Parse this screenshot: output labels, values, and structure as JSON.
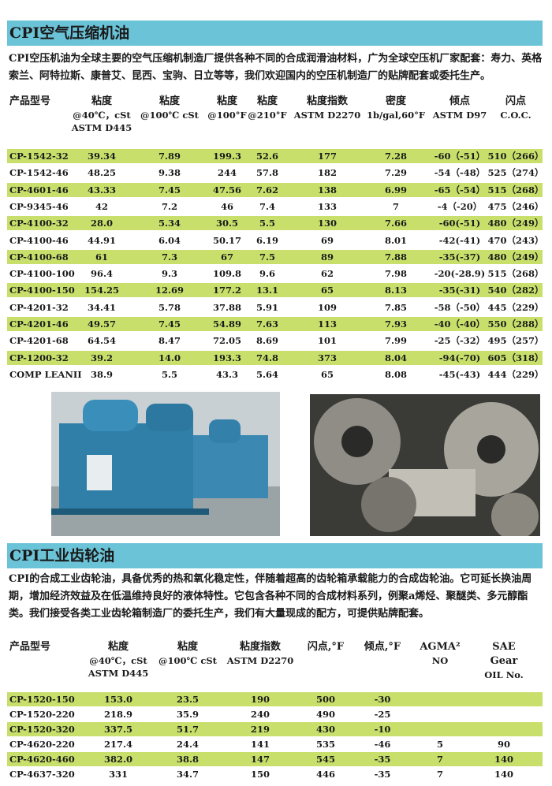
{
  "section1": {
    "title": "CPI空气压缩机油",
    "intro": " CPI空压机油为全球主要的空气压缩机制造厂提供各种不同的合成润滑油材料，广为全球空压机厂家配套：寿力、英格索兰、阿特拉斯、康普艾、昆西、宝驹、日立等等，我们欢迎国内的空压机制造厂的贴牌配套或委托生产。",
    "headers": [
      [
        "产品型号"
      ],
      [
        "粘度",
        "@40℃，cSt",
        "ASTM D445"
      ],
      [
        "粘度",
        "@100℃ cSt"
      ],
      [
        "粘度",
        "@100°F"
      ],
      [
        "粘度",
        "@210°F"
      ],
      [
        "粘度指数",
        "ASTM D2270"
      ],
      [
        "密度",
        "1b/gal,60°F"
      ],
      [
        "倾点",
        "ASTM D97"
      ],
      [
        "闪点",
        "C.O.C."
      ]
    ],
    "rows": [
      [
        "CP-1542-32",
        "39.34",
        "7.89",
        "199.3",
        "52.6",
        "177",
        "7.28",
        "-60（-51）",
        "510（266）"
      ],
      [
        "CP-1542-46",
        "48.25",
        "9.38",
        "244",
        "57.8",
        "182",
        "7.29",
        "-54（-48）",
        "525（274）"
      ],
      [
        "CP-4601-46",
        "43.33",
        "7.45",
        "47.56",
        "7.62",
        "138",
        "6.99",
        "-65（-54）",
        "515（268）"
      ],
      [
        "CP-9345-46",
        "42",
        "7.2",
        "46",
        "7.4",
        "133",
        "7",
        "-4（-20）",
        "475（246）"
      ],
      [
        "CP-4100-32",
        "28.0",
        "5.34",
        "30.5",
        "5.5",
        "130",
        "7.66",
        "-60(-51)",
        "480（249）"
      ],
      [
        "CP-4100-46",
        "44.91",
        "6.04",
        "50.17",
        "6.19",
        "69",
        "8.01",
        "-42(-41)",
        "470（243）"
      ],
      [
        "CP-4100-68",
        "61",
        "7.3",
        "67",
        "7.5",
        "89",
        "7.88",
        "-35(-37)",
        "480（249）"
      ],
      [
        "CP-4100-100",
        "96.4",
        "9.3",
        "109.8",
        "9.6",
        "62",
        "7.98",
        "-20(-28.9)",
        "515（268）"
      ],
      [
        "CP-4100-150",
        "154.25",
        "12.69",
        "177.2",
        "13.1",
        "65",
        "8.13",
        "-35(-31)",
        "540（282）"
      ],
      [
        "CP-4201-32",
        "34.41",
        "5.78",
        "37.88",
        "5.91",
        "109",
        "7.85",
        "-58（-50）",
        "445（229）"
      ],
      [
        "CP-4201-46",
        "49.57",
        "7.45",
        "54.89",
        "7.63",
        "113",
        "7.93",
        "-40（-40）",
        "550（288）"
      ],
      [
        "CP-4201-68",
        "64.54",
        "8.47",
        "72.05",
        "8.69",
        "101",
        "7.99",
        "-25（-32）",
        "495（257）"
      ],
      [
        "CP-1200-32",
        "39.2",
        "14.0",
        "193.3",
        "74.8",
        "373",
        "8.04",
        "-94(-70)",
        "605（318）"
      ],
      [
        "COMP LEANII",
        "38.9",
        "5.5",
        "43.3",
        "5.64",
        "65",
        "8.08",
        "-45(-43)",
        "444（229）"
      ]
    ]
  },
  "section2": {
    "title": "CPI工业齿轮油",
    "intro": "CPI的合成工业齿轮油，具备优秀的热和氧化稳定性，伴随着超高的齿轮箱承载能力的合成齿轮油。它可延长换油周期，增加经济效益及在低温维持良好的液体特性。它包含各种不同的合成材料系列，例聚a烯烃、聚醚类、多元醇酯类。我们接受各类工业齿轮箱制造厂的委托生产，我们有大量现成的配方，可提供贴牌配套。",
    "headers": [
      [
        "产品型号"
      ],
      [
        "粘度",
        "@40℃，cSt",
        "ASTM D445"
      ],
      [
        "粘度",
        "@100℃ cSt"
      ],
      [
        "粘度指数",
        "ASTM D2270"
      ],
      [
        "闪点,°F"
      ],
      [
        "倾点,°F"
      ],
      [
        "AGMA²",
        "NO"
      ],
      [
        "SAE Gear",
        "OIL No."
      ]
    ],
    "rows": [
      [
        "CP-1520-150",
        "153.0",
        "23.5",
        "190",
        "500",
        "-30",
        "",
        ""
      ],
      [
        "CP-1520-220",
        "218.9",
        "35.9",
        "240",
        "490",
        "-25",
        "",
        ""
      ],
      [
        "CP-1520-320",
        "337.5",
        "51.7",
        "219",
        "430",
        "-10",
        "",
        ""
      ],
      [
        "CP-4620-220",
        "217.4",
        "24.4",
        "141",
        "535",
        "-46",
        "5",
        "90"
      ],
      [
        "CP-4620-460",
        "382.0",
        "38.8",
        "147",
        "545",
        "-35",
        "7",
        "140"
      ],
      [
        "CP-4637-320",
        "331",
        "34.7",
        "150",
        "446",
        "-35",
        "7",
        "140"
      ]
    ]
  },
  "colors": {
    "title_bar": "#6bc3d8",
    "row_highlight": "#c8e06b"
  },
  "images": [
    "air-compressor-photo",
    "gears-photo"
  ]
}
